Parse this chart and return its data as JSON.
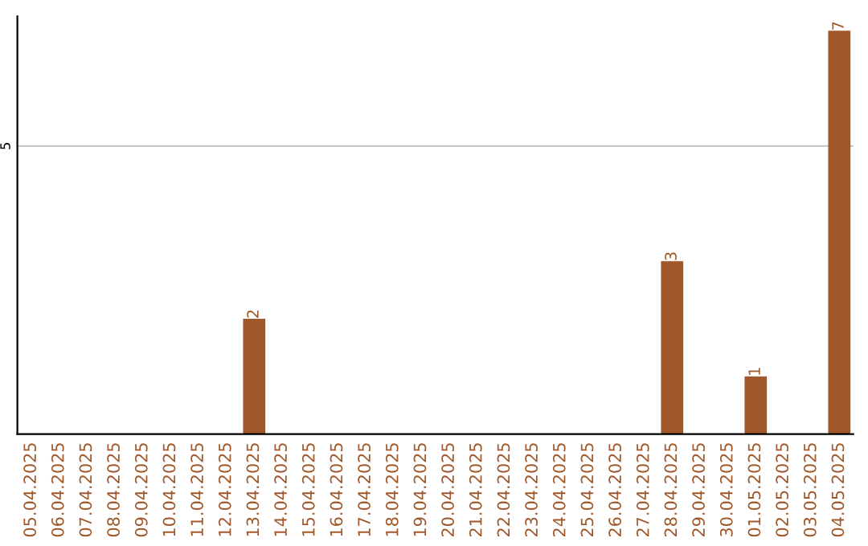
{
  "chart_data": {
    "type": "bar",
    "categories": [
      "05.04.2025",
      "06.04.2025",
      "07.04.2025",
      "08.04.2025",
      "09.04.2025",
      "10.04.2025",
      "11.04.2025",
      "12.04.2025",
      "13.04.2025",
      "14.04.2025",
      "15.04.2025",
      "16.04.2025",
      "17.04.2025",
      "18.04.2025",
      "19.04.2025",
      "20.04.2025",
      "21.04.2025",
      "22.04.2025",
      "23.04.2025",
      "24.04.2025",
      "25.04.2025",
      "26.04.2025",
      "27.04.2025",
      "28.04.2025",
      "29.04.2025",
      "30.04.2025",
      "01.05.2025",
      "02.05.2025",
      "03.05.2025",
      "04.05.2025"
    ],
    "values": [
      0,
      0,
      0,
      0,
      0,
      0,
      0,
      0,
      2,
      0,
      0,
      0,
      0,
      0,
      0,
      0,
      0,
      0,
      0,
      0,
      0,
      0,
      0,
      3,
      0,
      0,
      1,
      0,
      0,
      7
    ],
    "value_labels": [
      null,
      null,
      null,
      null,
      null,
      null,
      null,
      null,
      "2",
      null,
      null,
      null,
      null,
      null,
      null,
      null,
      null,
      null,
      null,
      null,
      null,
      null,
      null,
      "3",
      null,
      null,
      "1",
      null,
      null,
      "7"
    ],
    "color": "#a0582a",
    "ylim": [
      0,
      7.25
    ],
    "yticks": [
      5
    ],
    "grid": "y"
  }
}
